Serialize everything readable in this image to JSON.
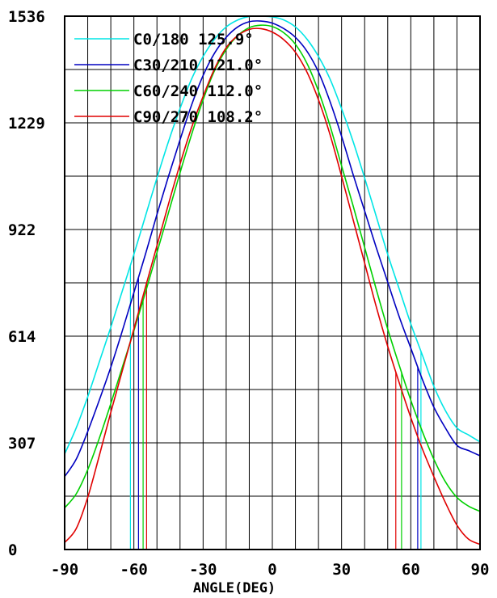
{
  "chart_data": {
    "type": "line",
    "title": "",
    "xlabel": "ANGLE(DEG)",
    "ylabel": "",
    "xlim": [
      -90,
      90
    ],
    "ylim": [
      0,
      1536
    ],
    "x_ticks": [
      -90,
      -60,
      -30,
      0,
      30,
      60,
      90
    ],
    "x_tick_labels": [
      "-90",
      "-60",
      "-30",
      "0",
      "30",
      "60",
      "90"
    ],
    "y_ticks": [
      0,
      307,
      614,
      922,
      1229,
      1536
    ],
    "y_tick_labels": [
      "0",
      "307",
      "614",
      "922",
      "1229",
      "1536"
    ],
    "grid": true,
    "legend_position": "top-left",
    "x": [
      -90,
      -85,
      -80,
      -75,
      -70,
      -65,
      -60,
      -55,
      -50,
      -45,
      -40,
      -35,
      -30,
      -25,
      -20,
      -15,
      -10,
      -5,
      0,
      5,
      10,
      15,
      20,
      25,
      30,
      35,
      40,
      45,
      50,
      55,
      60,
      65,
      70,
      75,
      80,
      85,
      90
    ],
    "series": [
      {
        "name": "C0/180 125.9°",
        "color": "#00e5e5",
        "beam_half_angles": [
          -61.5,
          64.4
        ],
        "values": [
          275,
          350,
          440,
          540,
          640,
          745,
          850,
          960,
          1070,
          1175,
          1270,
          1355,
          1420,
          1470,
          1505,
          1525,
          1535,
          1536,
          1534,
          1525,
          1505,
          1470,
          1420,
          1355,
          1270,
          1175,
          1070,
          960,
          850,
          750,
          650,
          560,
          470,
          400,
          350,
          330,
          310
        ]
      },
      {
        "name": "C30/210 121.0°",
        "color": "#0000c0",
        "beam_half_angles": [
          -58.0,
          63.0
        ],
        "values": [
          210,
          260,
          340,
          430,
          525,
          630,
          740,
          850,
          965,
          1075,
          1180,
          1280,
          1365,
          1430,
          1475,
          1505,
          1520,
          1522,
          1516,
          1500,
          1475,
          1435,
          1375,
          1290,
          1190,
          1080,
          975,
          870,
          770,
          670,
          580,
          490,
          410,
          350,
          300,
          285,
          270
        ]
      },
      {
        "name": "C60/240 112.0°",
        "color": "#00d000",
        "beam_half_angles": [
          -56.0,
          56.0
        ],
        "values": [
          120,
          160,
          230,
          320,
          420,
          525,
          630,
          740,
          855,
          970,
          1085,
          1195,
          1295,
          1380,
          1440,
          1480,
          1503,
          1510,
          1506,
          1488,
          1455,
          1400,
          1320,
          1220,
          1105,
          990,
          870,
          750,
          635,
          530,
          430,
          340,
          260,
          195,
          150,
          125,
          110
        ]
      },
      {
        "name": "C90/270 108.2°",
        "color": "#e00000",
        "beam_half_angles": [
          -54.5,
          53.5
        ],
        "values": [
          20,
          60,
          150,
          270,
          395,
          515,
          635,
          755,
          875,
          995,
          1110,
          1215,
          1305,
          1385,
          1445,
          1480,
          1498,
          1500,
          1490,
          1468,
          1432,
          1375,
          1295,
          1195,
          1075,
          950,
          825,
          700,
          585,
          480,
          380,
          290,
          210,
          135,
          70,
          30,
          15
        ]
      }
    ]
  }
}
